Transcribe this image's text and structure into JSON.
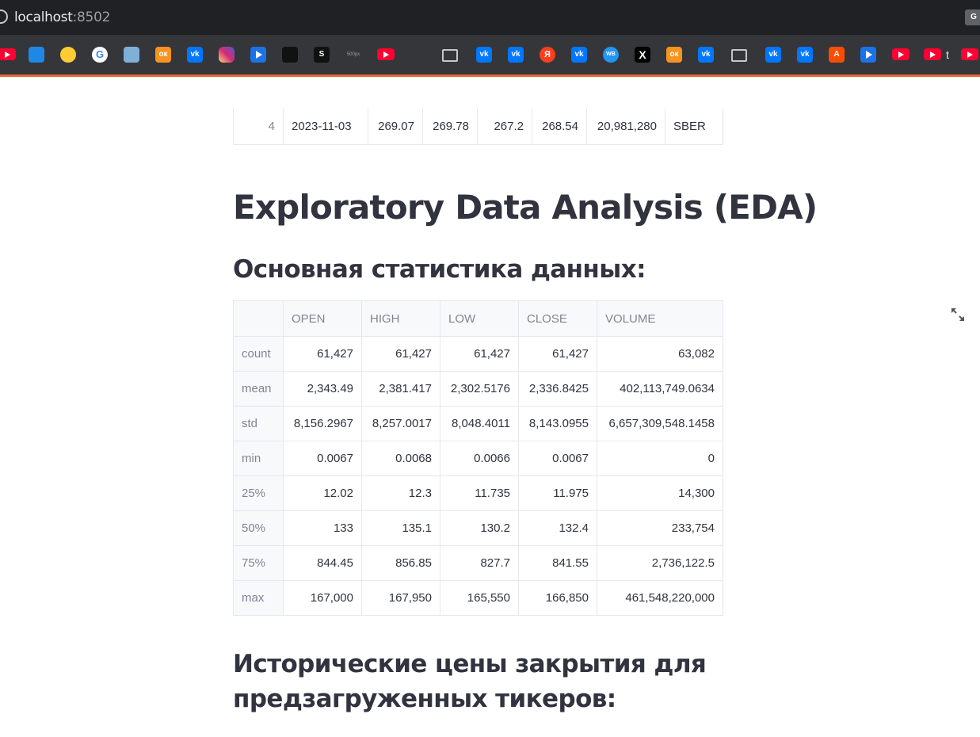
{
  "browser": {
    "url_host": "localhost",
    "url_port": ":8502",
    "translate_icon": "G",
    "bookmarks": [
      {
        "icon": "youtube-icon",
        "label": ""
      },
      {
        "icon": "chart-icon",
        "label": ""
      },
      {
        "icon": "emoji-icon",
        "label": ""
      },
      {
        "icon": "google-icon",
        "label": "G"
      },
      {
        "icon": "app-icon",
        "label": ""
      },
      {
        "icon": "ok-icon",
        "label": "ок"
      },
      {
        "icon": "vk-icon",
        "label": "vk"
      },
      {
        "icon": "instagram-icon",
        "label": ""
      },
      {
        "icon": "play-icon",
        "label": ""
      },
      {
        "icon": "dark-app-icon",
        "label": ""
      },
      {
        "icon": "squarespace-icon",
        "label": "S"
      },
      {
        "icon": "500px-icon",
        "label": "500px"
      },
      {
        "icon": "youtube-icon",
        "label": ""
      },
      {
        "icon": "folder-icon",
        "label": ""
      },
      {
        "icon": "vk-icon",
        "label": "vk"
      },
      {
        "icon": "vk-icon",
        "label": "vk"
      },
      {
        "icon": "yandex-icon",
        "label": "Я"
      },
      {
        "icon": "vk-icon",
        "label": "vk"
      },
      {
        "icon": "wb-icon",
        "label": "WB"
      },
      {
        "icon": "x-icon",
        "label": "X"
      },
      {
        "icon": "ok-icon",
        "label": "ок"
      },
      {
        "icon": "vk-icon",
        "label": "vk"
      },
      {
        "icon": "folder-icon",
        "label": ""
      },
      {
        "icon": "vk-icon",
        "label": "vk"
      },
      {
        "icon": "vk-icon",
        "label": "vk"
      },
      {
        "icon": "strava-icon",
        "label": "A"
      },
      {
        "icon": "play-icon",
        "label": ""
      },
      {
        "icon": "youtube-icon",
        "label": ""
      },
      {
        "icon": "youtube-icon",
        "label": "t"
      },
      {
        "icon": "youtube-icon",
        "label": ""
      }
    ]
  },
  "top_table_row": {
    "index": "4",
    "date": "2023-11-03",
    "open": "269.07",
    "high": "269.78",
    "low": "267.2",
    "close": "268.54",
    "volume": "20,981,280",
    "ticker": "SBER"
  },
  "page": {
    "title": "Exploratory Data Analysis (EDA)",
    "stats_heading": "Основная статистика данных:",
    "history_heading": "Исторические цены закрытия для предзагруженных тикеров:"
  },
  "stats_table": {
    "columns": [
      "",
      "OPEN",
      "HIGH",
      "LOW",
      "CLOSE",
      "VOLUME"
    ],
    "rows": [
      [
        "count",
        "61,427",
        "61,427",
        "61,427",
        "61,427",
        "63,082"
      ],
      [
        "mean",
        "2,343.49",
        "2,381.417",
        "2,302.5176",
        "2,336.8425",
        "402,113,749.0634"
      ],
      [
        "std",
        "8,156.2967",
        "8,257.0017",
        "8,048.4011",
        "8,143.0955",
        "6,657,309,548.1458"
      ],
      [
        "min",
        "0.0067",
        "0.0068",
        "0.0066",
        "0.0067",
        "0"
      ],
      [
        "25%",
        "12.02",
        "12.3",
        "11.735",
        "11.975",
        "14,300"
      ],
      [
        "50%",
        "133",
        "135.1",
        "130.2",
        "132.4",
        "233,754"
      ],
      [
        "75%",
        "844.45",
        "856.85",
        "827.7",
        "841.55",
        "2,736,122.5"
      ],
      [
        "max",
        "167,000",
        "167,950",
        "165,550",
        "166,850",
        "461,548,220,000"
      ]
    ]
  }
}
